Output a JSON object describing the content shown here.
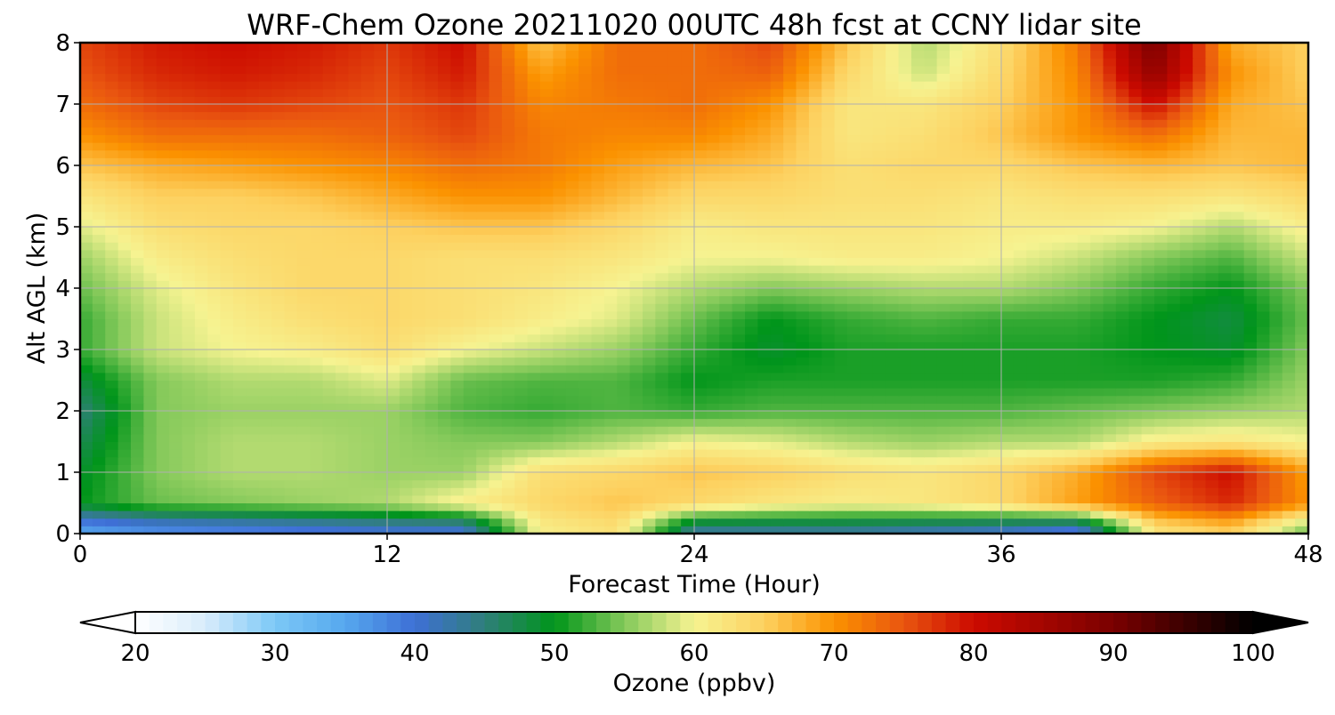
{
  "chart_data": {
    "type": "heatmap",
    "title": "WRF-Chem Ozone  20211020 00UTC 48h fcst at CCNY lidar site",
    "xlabel": "Forecast Time (Hour)",
    "ylabel": "Alt AGL (km)",
    "xlim": [
      0,
      48
    ],
    "ylim": [
      0,
      8
    ],
    "x_ticks": [
      "0",
      "12",
      "24",
      "36",
      "48"
    ],
    "y_ticks": [
      "0",
      "1",
      "2",
      "3",
      "4",
      "5",
      "6",
      "7",
      "8"
    ],
    "grid": true,
    "x": [
      0,
      3,
      6,
      9,
      12,
      15,
      18,
      21,
      24,
      27,
      30,
      33,
      36,
      39,
      42,
      45,
      48
    ],
    "y": [
      0.1,
      0.5,
      1,
      1.5,
      2,
      2.5,
      3,
      3.5,
      4,
      4.5,
      5,
      5.5,
      6,
      6.5,
      7,
      7.5,
      8
    ],
    "z": [
      [
        36,
        38,
        39,
        40,
        41,
        41,
        61,
        63,
        44,
        44,
        44,
        43,
        42,
        40,
        63,
        66,
        55
      ],
      [
        50,
        54,
        55,
        56,
        57,
        61,
        64,
        66,
        64,
        62,
        61,
        62,
        64,
        69,
        74,
        78,
        70
      ],
      [
        49,
        55,
        57,
        57,
        56,
        56,
        63,
        64,
        66,
        65,
        63,
        62,
        64,
        68,
        76,
        80,
        69
      ],
      [
        47,
        55,
        57,
        57,
        56,
        55,
        55,
        57,
        60,
        59,
        57,
        56,
        57,
        57,
        61,
        62,
        60
      ],
      [
        45,
        55,
        56,
        56,
        56,
        53,
        52,
        53,
        52,
        53,
        53,
        53,
        53,
        54,
        55,
        56,
        57
      ],
      [
        48,
        55,
        57,
        57,
        59,
        54,
        53,
        53,
        50,
        51,
        51,
        51,
        51,
        51,
        51,
        52,
        56
      ],
      [
        52,
        58,
        60,
        61,
        63,
        60,
        58,
        56,
        52,
        49,
        51,
        51,
        51,
        51,
        50,
        49,
        55
      ],
      [
        52,
        58,
        61,
        63,
        64,
        63,
        61,
        59,
        54,
        50,
        52,
        53,
        52,
        52,
        50,
        48,
        54
      ],
      [
        54,
        59,
        62,
        64,
        64,
        63,
        62,
        60,
        57,
        55,
        56,
        57,
        57,
        55,
        52,
        50,
        55
      ],
      [
        56,
        61,
        63,
        64,
        64,
        63,
        63,
        62,
        60,
        60,
        61,
        61,
        60,
        58,
        55,
        53,
        58
      ],
      [
        59,
        63,
        64,
        64,
        65,
        66,
        66,
        64,
        61,
        62,
        62,
        62,
        61,
        61,
        60,
        57,
        61
      ],
      [
        62,
        65,
        65,
        66,
        68,
        70,
        70,
        67,
        64,
        64,
        63,
        63,
        62,
        63,
        63,
        62,
        64
      ],
      [
        66,
        68,
        69,
        70,
        71,
        73,
        72,
        69,
        67,
        66,
        63,
        64,
        64,
        66,
        67,
        66,
        67
      ],
      [
        70,
        73,
        73,
        73,
        74,
        76,
        72,
        71,
        71,
        68,
        62,
        63,
        66,
        70,
        73,
        67,
        67
      ],
      [
        73,
        76,
        77,
        76,
        75,
        77,
        71,
        72,
        73,
        70,
        62,
        62,
        65,
        70,
        80,
        68,
        66
      ],
      [
        75,
        78,
        79,
        78,
        76,
        79,
        69,
        73,
        73,
        74,
        64,
        58,
        64,
        71,
        87,
        70,
        65
      ],
      [
        76,
        79,
        80,
        79,
        77,
        80,
        66,
        73,
        73,
        76,
        66,
        57,
        63,
        72,
        90,
        68,
        65
      ]
    ],
    "colorbar": {
      "label": "Ozone  (ppbv)",
      "range": [
        20,
        100
      ],
      "extend": "both",
      "ticks": [
        "20",
        "30",
        "40",
        "50",
        "60",
        "70",
        "80",
        "90",
        "100"
      ]
    }
  }
}
